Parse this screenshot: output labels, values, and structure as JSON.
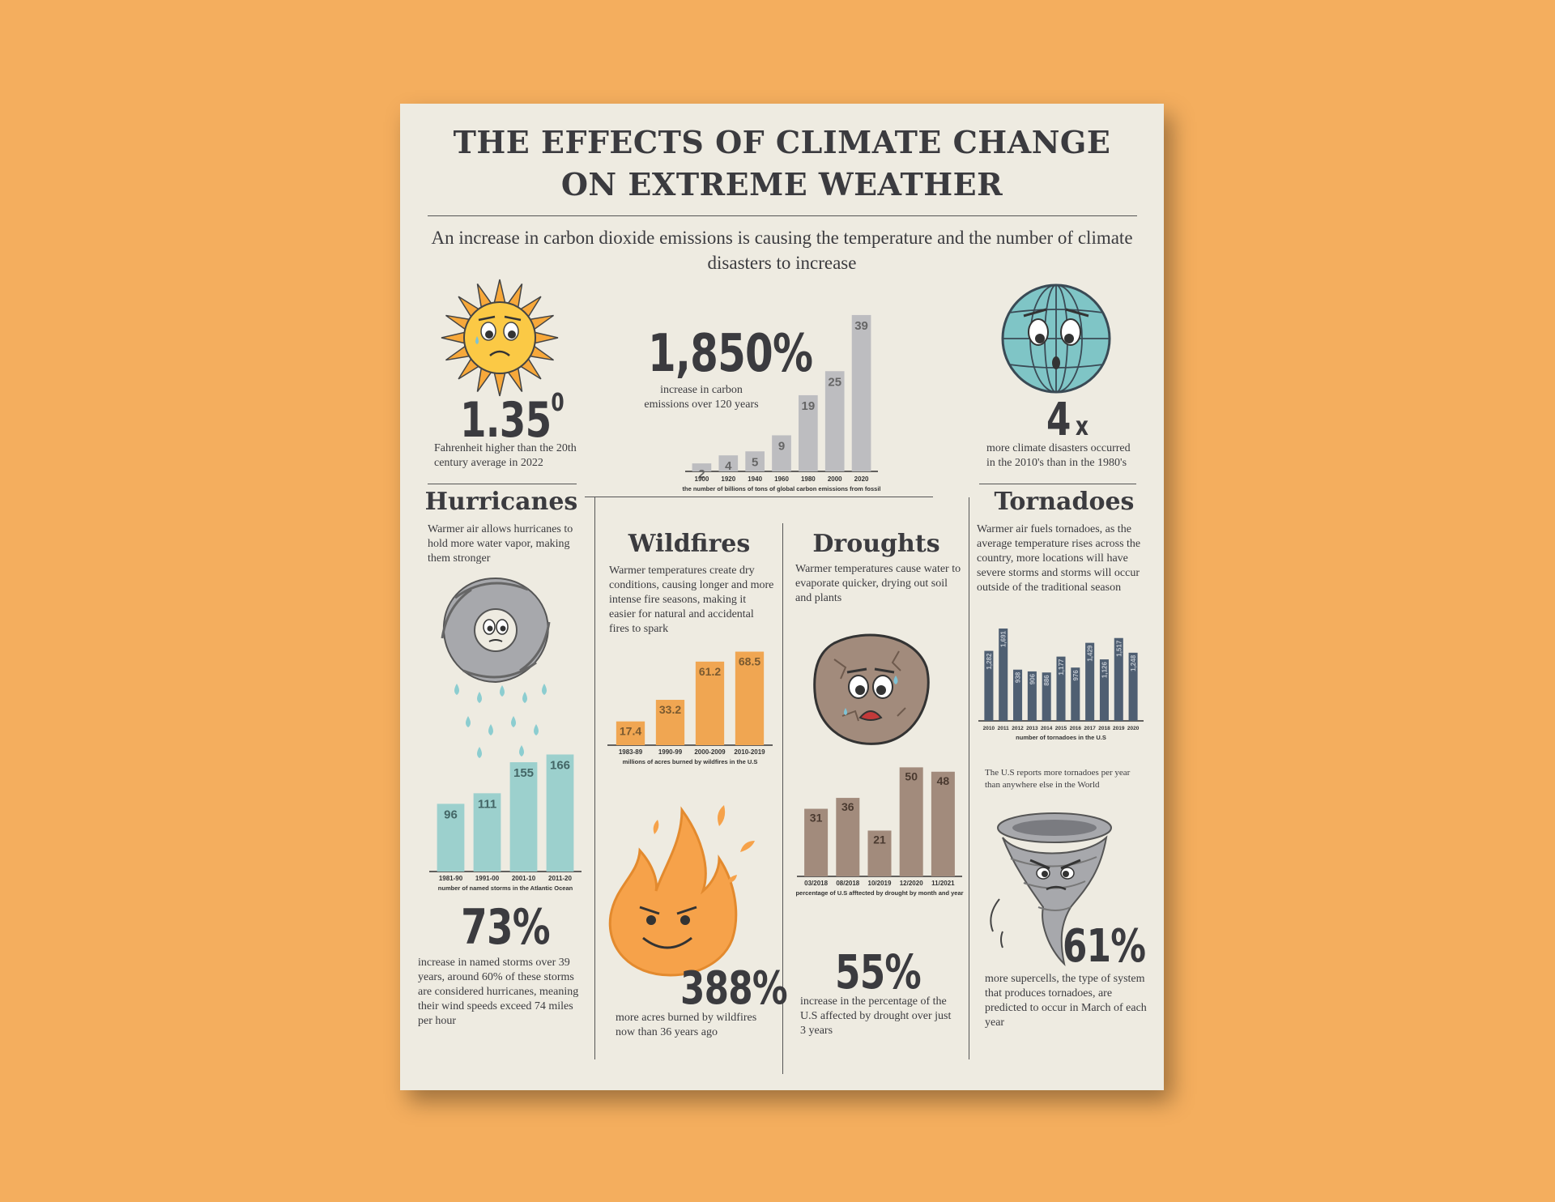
{
  "title": {
    "line1": "THE EFFECTS OF CLIMATE CHANGE",
    "line2": "ON EXTREME WEATHER"
  },
  "subtitle": "An increase in carbon dioxide  emissions is causing the temperature and the number of climate disasters to increase",
  "temperature": {
    "value": "1.35",
    "superscript": "0",
    "caption": "Fahrenheit higher than the 20th century average in 2022"
  },
  "emissions": {
    "value": "1,850%",
    "caption": "increase in carbon emissions over 120 years"
  },
  "disasters": {
    "value": "4",
    "suffix": "x",
    "caption": "more climate disasters occurred in the 2010's than in the 1980's"
  },
  "hurricanes": {
    "heading": "Hurricanes",
    "text": "Warmer air allows hurricanes to hold more water vapor, making them stronger",
    "stat": "73%",
    "stat_text": "increase in named storms over 39 years, around 60% of these storms are considered hurricanes, meaning their wind speeds exceed 74 miles per hour"
  },
  "wildfires": {
    "heading": "Wildfires",
    "text": "Warmer temperatures create dry conditions, causing longer and more intense fire seasons, making it easier for natural and accidental fires to spark",
    "stat": "388%",
    "stat_text": "more acres burned by wildfires now than 36 years ago"
  },
  "droughts": {
    "heading": "Droughts",
    "text": "Warmer temperatures cause water to evaporate quicker, drying out soil and plants",
    "stat": "55%",
    "stat_text": "increase in the percentage of the U.S affected by drought over just 3 years"
  },
  "tornadoes": {
    "heading": "Tornadoes",
    "text": "Warmer air fuels tornadoes, as the average temperature rises across the country, more locations will  have severe storms and storms will occur outside of the traditional season",
    "note": "The U.S reports more tornadoes per year than anywhere else in the World",
    "stat": "61%",
    "stat_text": "more supercells, the type of system that produces tornadoes, are predicted to occur in March of each year"
  },
  "colors": {
    "background": "#F4AE5E",
    "paper": "#EEEBE1",
    "text": "#3b3b3f",
    "gray_bar": "#BDBDC0",
    "teal_bar": "#9CD0CD",
    "orange_bar": "#F0A652",
    "brown_bar": "#A28B7C",
    "slate_bar": "#4F5F72"
  },
  "icons": [
    "sad-sun-icon",
    "sad-globe-icon",
    "hurricane-icon",
    "rock-icon",
    "flame-icon",
    "tornado-icon"
  ],
  "chart_data": [
    {
      "type": "bar",
      "name": "emissions",
      "categories": [
        "1900",
        "1920",
        "1940",
        "1960",
        "1980",
        "2000",
        "2020"
      ],
      "values": [
        2,
        4,
        5,
        9,
        19,
        25,
        39
      ],
      "labels": [
        "2",
        "4",
        "5",
        "9",
        "19",
        "25",
        "39"
      ],
      "xlabel": "the number of billions of tons of global carbon emissions from fossil fuel and industrial processes",
      "ylim": [
        0,
        40
      ]
    },
    {
      "type": "bar",
      "name": "storms",
      "categories": [
        "1981-90",
        "1991-00",
        "2001-10",
        "2011-20"
      ],
      "values": [
        96,
        111,
        155,
        166
      ],
      "labels": [
        "96",
        "111",
        "155",
        "166"
      ],
      "xlabel": "number of named storms in the Atlantic Ocean",
      "ylim": [
        0,
        170
      ]
    },
    {
      "type": "bar",
      "name": "wildfires",
      "categories": [
        "1983-89",
        "1990-99",
        "2000-2009",
        "2010-2019"
      ],
      "values": [
        17.4,
        33.2,
        61.2,
        68.5
      ],
      "labels": [
        "17.4",
        "33.2",
        "61.2",
        "68.5"
      ],
      "xlabel": "millions of acres burned by wildfires in the U.S",
      "ylim": [
        0,
        70
      ]
    },
    {
      "type": "bar",
      "name": "drought",
      "categories": [
        "03/2018",
        "08/2018",
        "10/2019",
        "12/2020",
        "11/2021"
      ],
      "values": [
        31,
        36,
        21,
        50,
        48
      ],
      "labels": [
        "31",
        "36",
        "21",
        "50",
        "48"
      ],
      "xlabel": "percentage of U.S afftected by drought by month and year",
      "ylim": [
        0,
        52
      ]
    },
    {
      "type": "bar",
      "name": "tornadoes",
      "categories": [
        "2010",
        "2011",
        "2012",
        "2013",
        "2014",
        "2015",
        "2016",
        "2017",
        "2018",
        "2019",
        "2020"
      ],
      "values": [
        1282,
        1691,
        938,
        906,
        886,
        1177,
        976,
        1429,
        1126,
        1517,
        1248
      ],
      "labels": [
        "1,282",
        "1,691",
        "938",
        "906",
        "886",
        "1,177",
        "976",
        "1,429",
        "1,126",
        "1,517",
        "1,248"
      ],
      "xlabel": "number of tornadoes in the U.S",
      "ylim": [
        0,
        1750
      ]
    }
  ]
}
